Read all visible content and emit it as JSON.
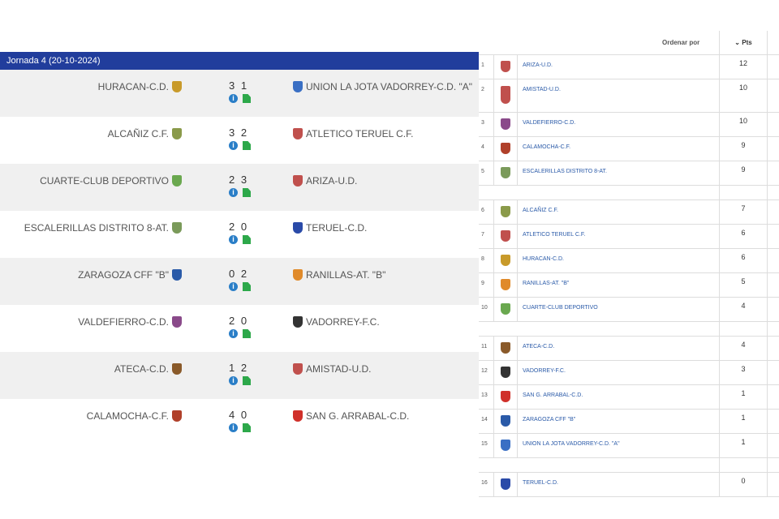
{
  "results": {
    "header": "Jornada 4 (20-10-2024)",
    "matches": [
      {
        "home": "HURACAN-C.D.",
        "score": "3 1",
        "away": "UNION LA JOTA VADORREY-C.D. \"A\"",
        "home_color": "#c89a2a",
        "away_color": "#3a6fc4"
      },
      {
        "home": "ALCAÑIZ C.F.",
        "score": "3 2",
        "away": "ATLETICO TERUEL C.F.",
        "home_color": "#8a9a4a",
        "away_color": "#c0504d"
      },
      {
        "home": "CUARTE-CLUB DEPORTIVO",
        "score": "2 3",
        "away": "ARIZA-U.D.",
        "home_color": "#6aa84f",
        "away_color": "#c0504d"
      },
      {
        "home": "ESCALERILLAS DISTRITO 8-AT.",
        "score": "2 0",
        "away": "TERUEL-C.D.",
        "home_color": "#7a9a5a",
        "away_color": "#2a4aa8"
      },
      {
        "home": "ZARAGOZA CFF \"B\"",
        "score": "0 2",
        "away": "RANILLAS-AT. \"B\"",
        "home_color": "#2a5aa8",
        "away_color": "#e08a2a"
      },
      {
        "home": "VALDEFIERRO-C.D.",
        "score": "2 0",
        "away": "VADORREY-F.C.",
        "home_color": "#8a4a8a",
        "away_color": "#333333"
      },
      {
        "home": "ATECA-C.D.",
        "score": "1 2",
        "away": "AMISTAD-U.D.",
        "home_color": "#8a5a2a",
        "away_color": "#c0504d"
      },
      {
        "home": "CALAMOCHA-C.F.",
        "score": "4 0",
        "away": "SAN G. ARRABAL-C.D.",
        "home_color": "#b0402a",
        "away_color": "#d0302a"
      }
    ]
  },
  "standings": {
    "sort_label": "Ordenar por",
    "pts_header": "Pts",
    "groups": [
      [
        {
          "pos": "1",
          "team": "ARIZA-U.D.",
          "pts": "12",
          "color": "#c0504d"
        },
        {
          "pos": "2",
          "team": "AMISTAD-U.D.",
          "pts": "10",
          "color": "#c0504d"
        },
        {
          "pos": "3",
          "team": "VALDEFIERRO-C.D.",
          "pts": "10",
          "color": "#8a4a8a"
        },
        {
          "pos": "4",
          "team": "CALAMOCHA-C.F.",
          "pts": "9",
          "color": "#b0402a"
        },
        {
          "pos": "5",
          "team": "ESCALERILLAS DISTRITO 8-AT.",
          "pts": "9",
          "color": "#7a9a5a"
        }
      ],
      [
        {
          "pos": "6",
          "team": "ALCAÑIZ C.F.",
          "pts": "7",
          "color": "#8a9a4a"
        },
        {
          "pos": "7",
          "team": "ATLETICO TERUEL C.F.",
          "pts": "6",
          "color": "#c0504d"
        },
        {
          "pos": "8",
          "team": "HURACAN-C.D.",
          "pts": "6",
          "color": "#c89a2a"
        },
        {
          "pos": "9",
          "team": "RANILLAS-AT. \"B\"",
          "pts": "5",
          "color": "#e08a2a"
        },
        {
          "pos": "10",
          "team": "CUARTE-CLUB DEPORTIVO",
          "pts": "4",
          "color": "#6aa84f"
        }
      ],
      [
        {
          "pos": "11",
          "team": "ATECA-C.D.",
          "pts": "4",
          "color": "#8a5a2a"
        },
        {
          "pos": "12",
          "team": "VADORREY-F.C.",
          "pts": "3",
          "color": "#333333"
        },
        {
          "pos": "13",
          "team": "SAN G. ARRABAL-C.D.",
          "pts": "1",
          "color": "#d0302a"
        },
        {
          "pos": "14",
          "team": "ZARAGOZA CFF \"B\"",
          "pts": "1",
          "color": "#2a5aa8"
        },
        {
          "pos": "15",
          "team": "UNION LA JOTA VADORREY-C.D. \"A\"",
          "pts": "1",
          "color": "#3a6fc4"
        }
      ],
      [
        {
          "pos": "16",
          "team": "TERUEL-C.D.",
          "pts": "0",
          "color": "#2a4aa8"
        }
      ]
    ]
  }
}
